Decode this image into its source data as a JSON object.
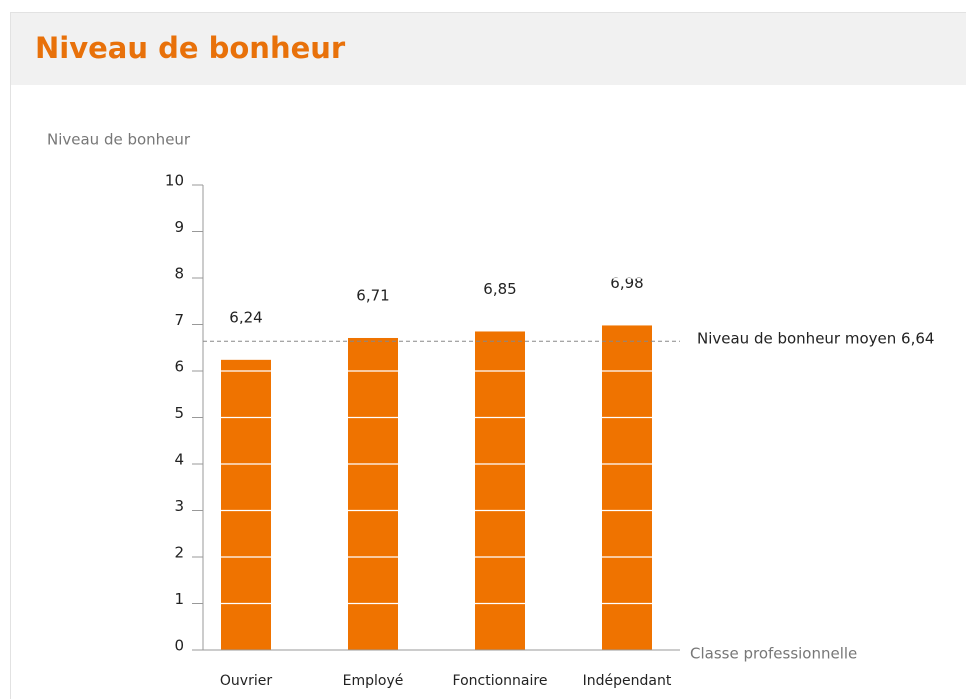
{
  "header": {
    "title": "Niveau de bonheur"
  },
  "chart_data": {
    "type": "bar",
    "y_label": "Niveau de bonheur",
    "x_label": "Classe professionnelle",
    "categories": [
      "Ouvrier",
      "Employé",
      "Fonctionnaire",
      "Indépendant"
    ],
    "values": [
      6.24,
      6.71,
      6.85,
      6.98
    ],
    "value_labels": [
      "6,24",
      "6,71",
      "6,85",
      "6,98"
    ],
    "color": "#ef7300",
    "ylim": [
      0,
      10
    ],
    "yticks": [
      0,
      1,
      2,
      3,
      4,
      5,
      6,
      7,
      8,
      9,
      10
    ],
    "grid": true,
    "reference_line": {
      "value": 6.64,
      "label": "Niveau de bonheur moyen 6,64"
    }
  }
}
